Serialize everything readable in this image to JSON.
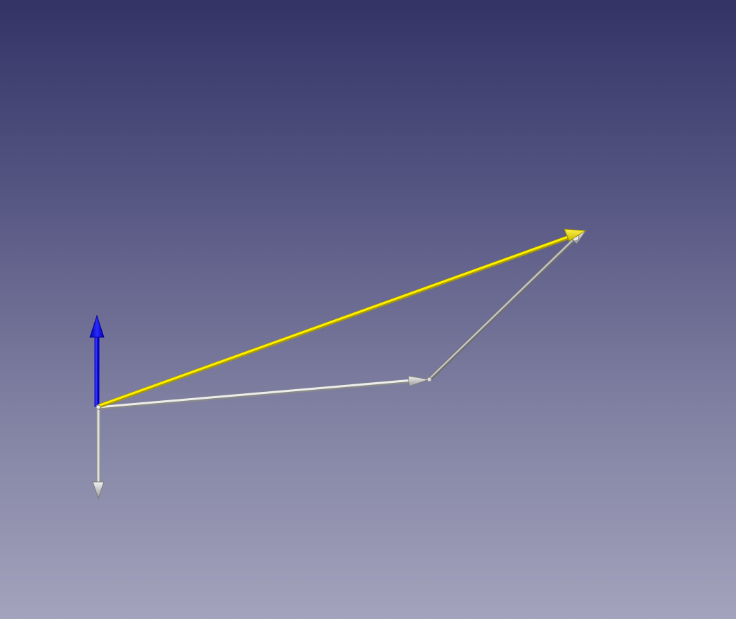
{
  "viewport": {
    "background_top": "#333366",
    "background_bottom": "#a3a3bd"
  },
  "vectors": [
    {
      "name": "resultant-vector",
      "color": "#e8e000"
    },
    {
      "name": "force-vector-horizontal",
      "color": "#d0d0d0"
    },
    {
      "name": "force-vector-diagonal",
      "color": "#a8a8a8"
    },
    {
      "name": "normal-axis-blue",
      "color": "#1010e0"
    },
    {
      "name": "downward-vector",
      "color": "#b8b8b8"
    }
  ]
}
